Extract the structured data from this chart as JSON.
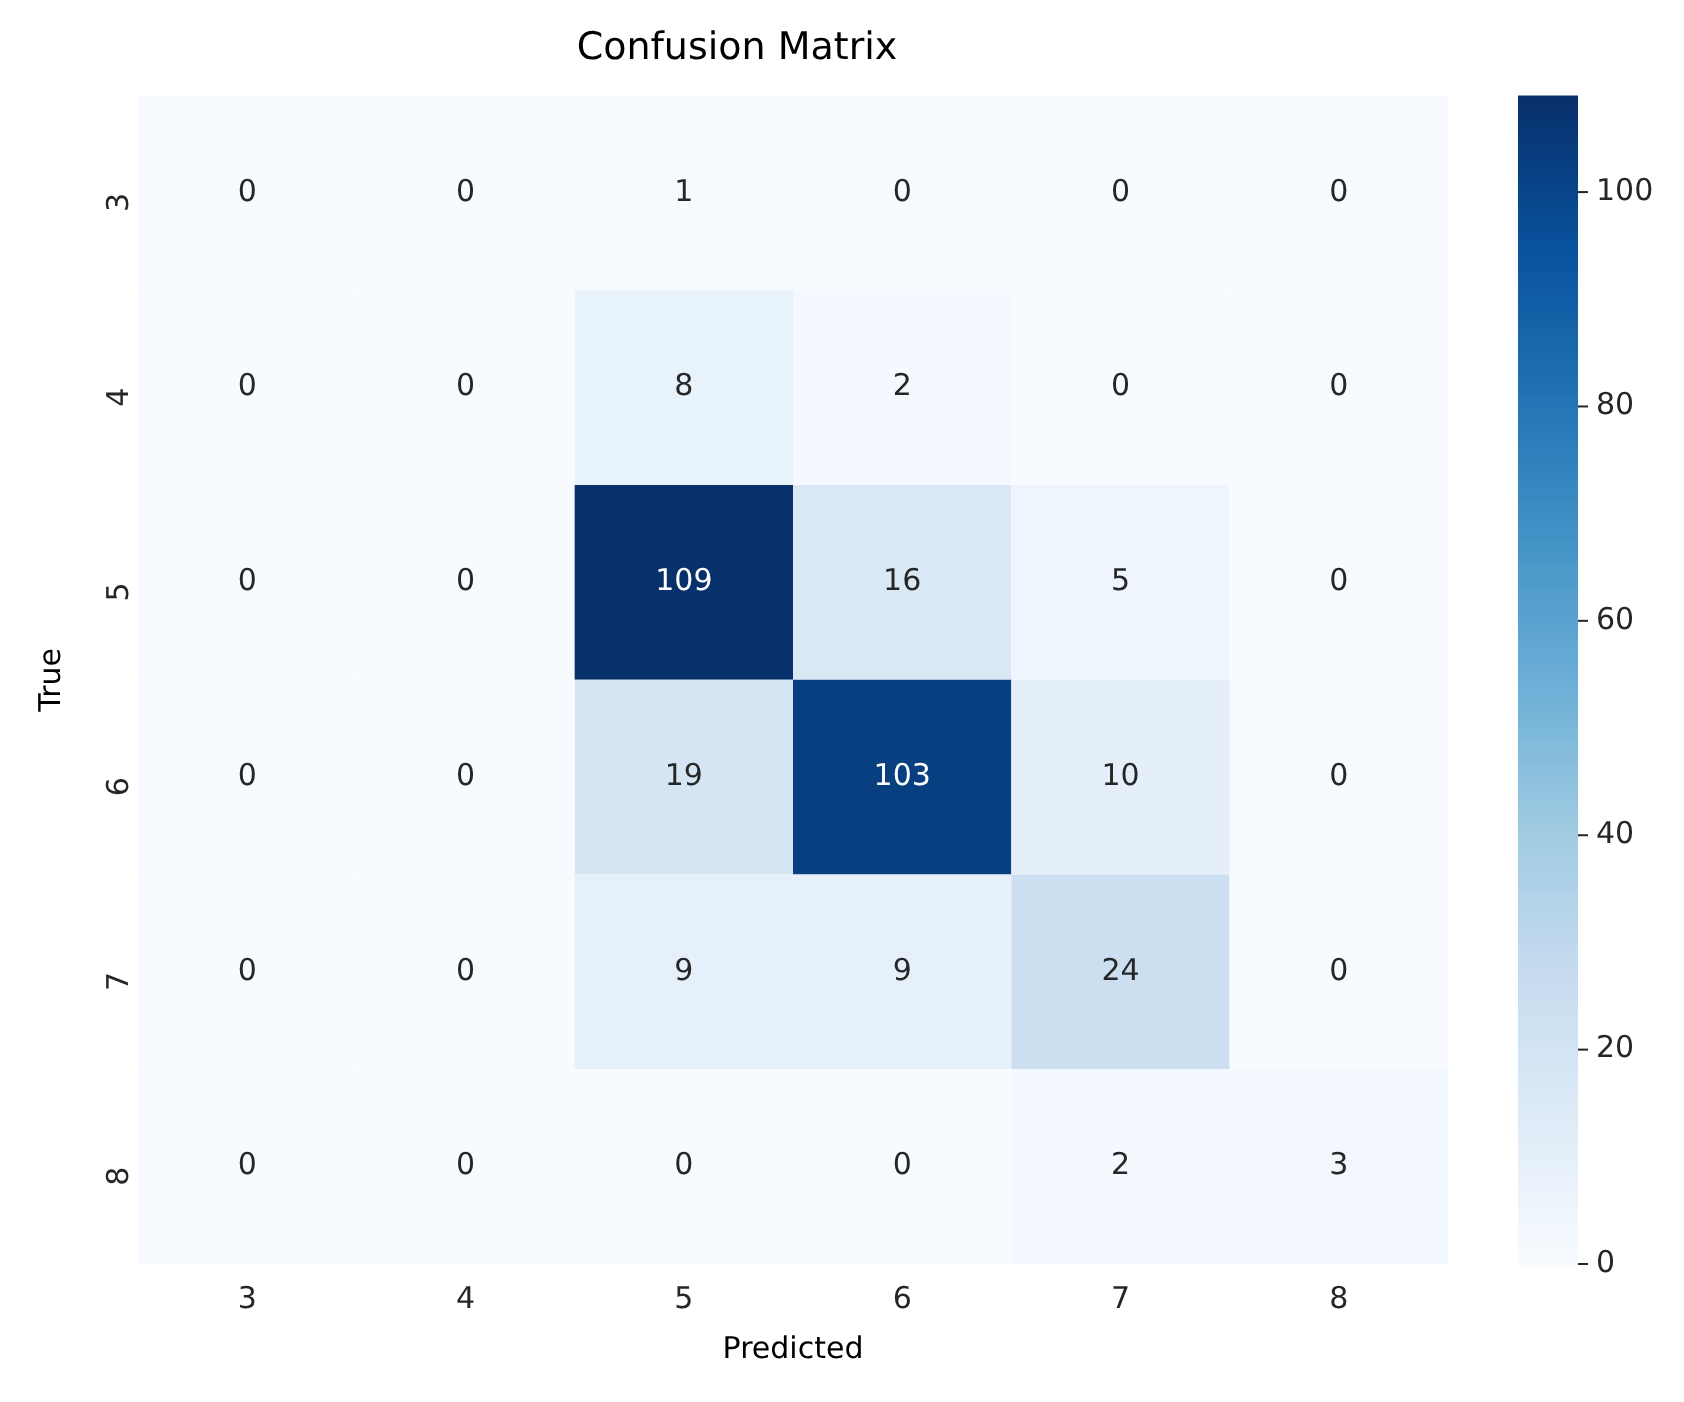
{
  "chart_data": {
    "type": "heatmap",
    "title": "Confusion Matrix",
    "xlabel": "Predicted",
    "ylabel": "True",
    "categories": [
      "3",
      "4",
      "5",
      "6",
      "7",
      "8"
    ],
    "y_categories": [
      "3",
      "4",
      "5",
      "6",
      "7",
      "8"
    ],
    "cells": [
      [
        0,
        0,
        1,
        0,
        0,
        0
      ],
      [
        0,
        0,
        8,
        2,
        0,
        0
      ],
      [
        0,
        0,
        109,
        16,
        5,
        0
      ],
      [
        0,
        0,
        19,
        103,
        10,
        0
      ],
      [
        0,
        0,
        9,
        9,
        24,
        0
      ],
      [
        0,
        0,
        0,
        0,
        2,
        3
      ]
    ],
    "clim": [
      0,
      109
    ],
    "cticks": [
      0,
      20,
      40,
      60,
      80,
      100
    ],
    "data_labels": true
  }
}
